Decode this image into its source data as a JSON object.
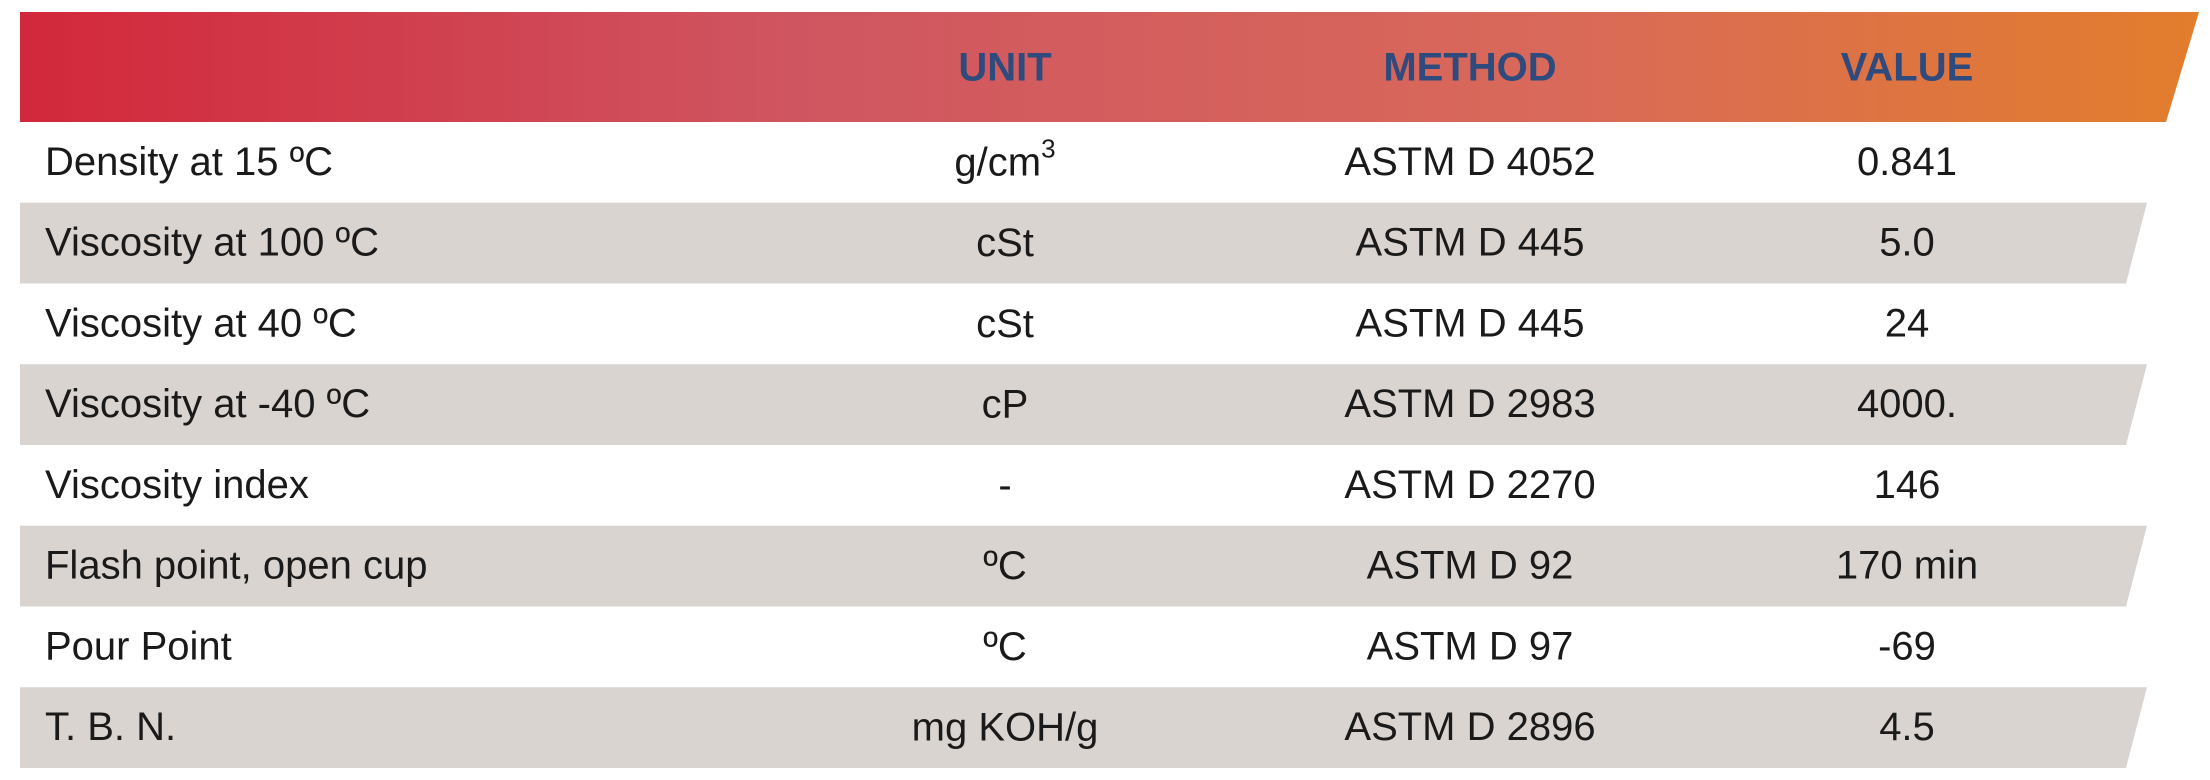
{
  "table": {
    "header": [
      "UNIT",
      "METHOD",
      "VALUE"
    ],
    "rows": [
      {
        "property": "Density at 15 ºC",
        "unit": "g/cm",
        "unit_sup": "3",
        "method": "ASTM D 4052",
        "value": "0.841"
      },
      {
        "property": "Viscosity at 100 ºC",
        "unit": "cSt",
        "method": "ASTM D 445",
        "value": "5.0"
      },
      {
        "property": "Viscosity at 40 ºC",
        "unit": "cSt",
        "method": "ASTM D 445",
        "value": "24"
      },
      {
        "property": "Viscosity at -40 ºC",
        "unit": "cP",
        "method": "ASTM D 2983",
        "value": "4000."
      },
      {
        "property": "Viscosity index",
        "unit": "-",
        "method": "ASTM D 2270",
        "value": "146"
      },
      {
        "property": "Flash point, open cup",
        "unit": "ºC",
        "method": "ASTM D 92",
        "value": "170 min"
      },
      {
        "property": "Pour Point",
        "unit": "ºC",
        "method": "ASTM D 97",
        "value": "-69"
      },
      {
        "property": "T. B. N.",
        "unit": "mg KOH/g",
        "method": "ASTM D 2896",
        "value": "4.5"
      }
    ]
  }
}
